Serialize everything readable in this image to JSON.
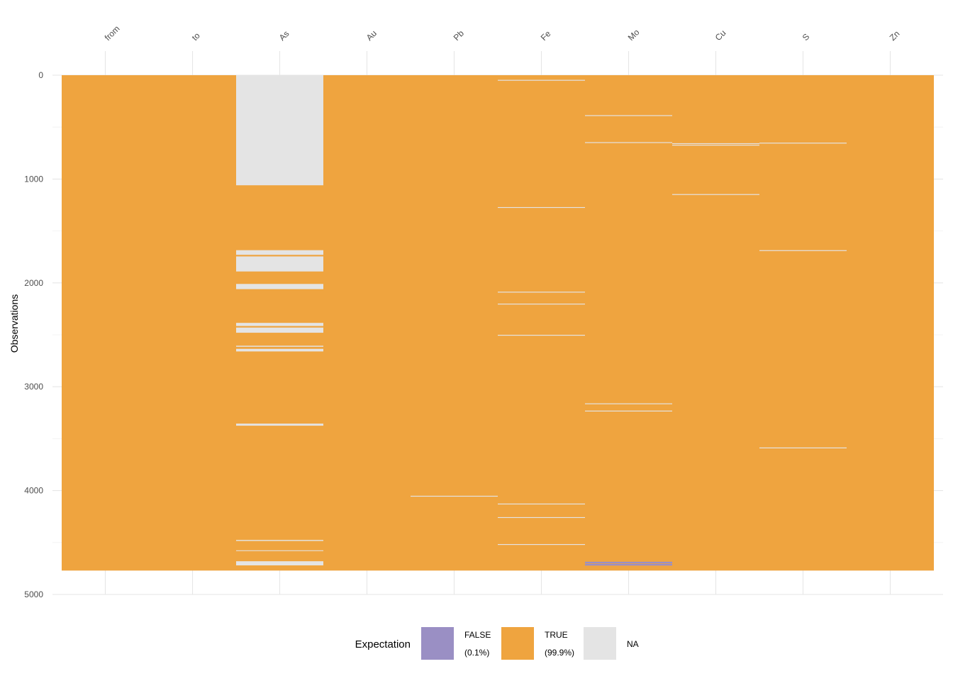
{
  "chart_data": {
    "type": "heatmap",
    "ylabel": "Observations",
    "columns": [
      "from",
      "to",
      "As",
      "Au",
      "Pb",
      "Fe",
      "Mo",
      "Cu",
      "S",
      "Zn"
    ],
    "n_observations": 4770,
    "yticks": [
      0,
      1000,
      2000,
      3000,
      4000,
      5000
    ],
    "ylim": [
      0,
      5000
    ],
    "grid": true,
    "legend": {
      "title": "Expectation",
      "position": "bottom",
      "items": [
        {
          "key": "FALSE",
          "label": "FALSE",
          "pct": "(0.1%)",
          "color": "#9a8fc4"
        },
        {
          "key": "TRUE",
          "label": "TRUE",
          "pct": "(99.9%)",
          "color": "#efa43f"
        },
        {
          "key": "NA",
          "label": "NA",
          "pct": "",
          "color": "#e4e4e4"
        }
      ]
    },
    "default_value": "TRUE",
    "cells": [
      {
        "column": "As",
        "value": "NA",
        "start": 0,
        "end": 1060
      },
      {
        "column": "As",
        "value": "NA",
        "start": 1685,
        "end": 1730
      },
      {
        "column": "As",
        "value": "NA",
        "start": 1745,
        "end": 1890
      },
      {
        "column": "As",
        "value": "NA",
        "start": 2010,
        "end": 2060
      },
      {
        "column": "As",
        "value": "NA",
        "start": 2385,
        "end": 2415
      },
      {
        "column": "As",
        "value": "NA",
        "start": 2430,
        "end": 2480
      },
      {
        "column": "As",
        "value": "NA",
        "start": 2605,
        "end": 2615
      },
      {
        "column": "As",
        "value": "NA",
        "start": 2635,
        "end": 2660
      },
      {
        "column": "As",
        "value": "NA",
        "start": 3355,
        "end": 3375
      },
      {
        "column": "As",
        "value": "NA",
        "start": 4475,
        "end": 4485
      },
      {
        "column": "As",
        "value": "NA",
        "start": 4575,
        "end": 4582
      },
      {
        "column": "As",
        "value": "NA",
        "start": 4680,
        "end": 4720
      },
      {
        "column": "Pb",
        "value": "NA",
        "start": 4050,
        "end": 4058
      },
      {
        "column": "Fe",
        "value": "NA",
        "start": 45,
        "end": 53
      },
      {
        "column": "Fe",
        "value": "NA",
        "start": 1270,
        "end": 1278
      },
      {
        "column": "Fe",
        "value": "NA",
        "start": 2085,
        "end": 2093
      },
      {
        "column": "Fe",
        "value": "NA",
        "start": 2200,
        "end": 2208
      },
      {
        "column": "Fe",
        "value": "NA",
        "start": 2500,
        "end": 2508
      },
      {
        "column": "Fe",
        "value": "NA",
        "start": 4125,
        "end": 4133
      },
      {
        "column": "Fe",
        "value": "NA",
        "start": 4255,
        "end": 4263
      },
      {
        "column": "Fe",
        "value": "NA",
        "start": 4515,
        "end": 4523
      },
      {
        "column": "Mo",
        "value": "NA",
        "start": 385,
        "end": 393
      },
      {
        "column": "Mo",
        "value": "NA",
        "start": 645,
        "end": 653
      },
      {
        "column": "Mo",
        "value": "NA",
        "start": 3160,
        "end": 3168
      },
      {
        "column": "Mo",
        "value": "NA",
        "start": 3230,
        "end": 3238
      },
      {
        "column": "Mo",
        "value": "FALSE",
        "start": 4685,
        "end": 4700
      },
      {
        "column": "Mo",
        "value": "FALSE",
        "start": 4705,
        "end": 4722
      },
      {
        "column": "Cu",
        "value": "NA",
        "start": 655,
        "end": 663
      },
      {
        "column": "Cu",
        "value": "NA",
        "start": 670,
        "end": 678
      },
      {
        "column": "Cu",
        "value": "NA",
        "start": 1145,
        "end": 1153
      },
      {
        "column": "S",
        "value": "NA",
        "start": 650,
        "end": 658
      },
      {
        "column": "S",
        "value": "NA",
        "start": 1685,
        "end": 1693
      },
      {
        "column": "S",
        "value": "NA",
        "start": 3585,
        "end": 3593
      }
    ]
  }
}
